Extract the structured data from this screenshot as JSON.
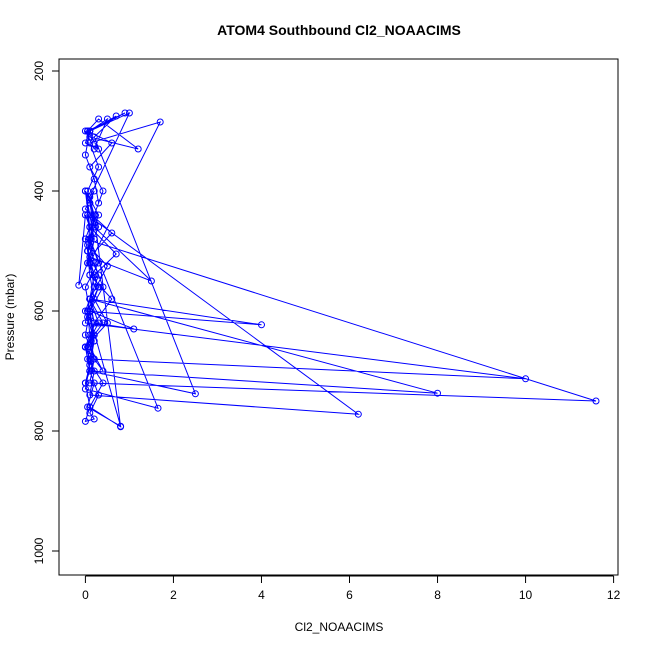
{
  "chart_data": {
    "type": "scatter",
    "title": "ATOM4 Southbound Cl2_NOAACIMS",
    "xlabel": "Cl2_NOAACIMS",
    "ylabel": "Pressure (mbar)",
    "xlim": [
      -0.6,
      12.1
    ],
    "ylim": [
      1040,
      180
    ],
    "y_reversed": true,
    "x_ticks": [
      0,
      2,
      4,
      6,
      8,
      10,
      12
    ],
    "y_ticks": [
      200,
      400,
      600,
      800,
      1000
    ],
    "grid": false,
    "legend": "none",
    "series_color": "#0000ff",
    "series": [
      {
        "x": [
          0.0,
          0.1,
          0.2,
          0.05,
          0.3,
          0.1,
          0.0,
          0.2,
          0.4,
          0.1,
          0.6,
          0.05,
          0.3,
          1.2,
          0.1,
          0.0,
          0.2,
          0.5,
          0.1,
          0.9,
          0.05,
          0.3,
          0.0,
          0.1,
          0.7,
          0.2,
          2.5,
          0.1,
          0.0,
          0.4,
          0.1,
          0.3,
          0.05,
          0.2,
          1.5,
          0.1,
          0.6,
          0.0,
          0.2,
          0.1,
          0.3,
          0.05,
          0.1,
          0.2,
          0.5,
          0.0,
          0.1,
          0.3,
          0.1,
          0.2,
          0.0,
          0.1,
          0.4,
          0.05,
          0.2,
          0.1,
          0.0,
          0.3,
          0.1,
          0.2,
          0.8,
          0.1,
          0.0,
          0.2,
          0.1,
          0.05,
          0.3,
          0.1,
          0.2,
          0.0,
          -0.15,
          0.05,
          0.1,
          0.3,
          0.0,
          0.1,
          0.2,
          0.05,
          0.1,
          0.6,
          0.2,
          0.0,
          0.4,
          0.1,
          0.2,
          1.1,
          0.1,
          0.3,
          0.05,
          0.2,
          0.1,
          0.0,
          0.1,
          0.7,
          0.2,
          0.1,
          0.5,
          0.05,
          0.2,
          0.1,
          1.0,
          0.1,
          0.0,
          0.2,
          0.3,
          0.1,
          0.05,
          0.2,
          0.1,
          0.0,
          10.0,
          0.1,
          0.2,
          0.05,
          0.3,
          0.1,
          0.0,
          11.6,
          0.1,
          0.2,
          0.0,
          0.1,
          0.4,
          0.2,
          0.1,
          0.05,
          6.2,
          0.1,
          0.2,
          0.0,
          0.3,
          0.1,
          8.0,
          0.1,
          0.05,
          0.2,
          0.1,
          4.0,
          0.0,
          0.2,
          0.1,
          1.7,
          0.1,
          0.3,
          0.05,
          0.2,
          0.1,
          1.65,
          0.0,
          0.1,
          0.2,
          0.1,
          0.8,
          0.05,
          0.2
        ],
        "y": [
          720,
          690,
          650,
          610,
          560,
          520,
          480,
          440,
          400,
          360,
          320,
          300,
          280,
          330,
          310,
          300,
          330,
          280,
          300,
          270,
          300,
          330,
          320,
          300,
          275,
          310,
          738,
          700,
          660,
          620,
          580,
          540,
          500,
          460,
          550,
          510,
          470,
          430,
          400,
          420,
          460,
          500,
          540,
          580,
          620,
          660,
          700,
          740,
          770,
          780,
          784,
          760,
          720,
          680,
          640,
          600,
          560,
          520,
          480,
          440,
          793,
          760,
          720,
          680,
          640,
          600,
          560,
          520,
          480,
          440,
          557,
          520,
          480,
          440,
          400,
          420,
          460,
          500,
          540,
          580,
          620,
          660,
          700,
          660,
          620,
          630,
          600,
          560,
          520,
          480,
          440,
          400,
          460,
          505,
          540,
          580,
          525,
          490,
          450,
          410,
          270,
          300,
          340,
          380,
          420,
          460,
          500,
          540,
          580,
          620,
          713,
          680,
          640,
          600,
          560,
          520,
          480,
          750,
          720,
          680,
          640,
          600,
          560,
          520,
          480,
          440,
          772,
          740,
          700,
          660,
          620,
          580,
          737,
          700,
          660,
          620,
          580,
          623,
          600,
          560,
          520,
          285,
          320,
          360,
          400,
          440,
          480,
          762,
          730,
          690,
          650,
          610,
          792,
          760,
          720
        ]
      }
    ]
  }
}
